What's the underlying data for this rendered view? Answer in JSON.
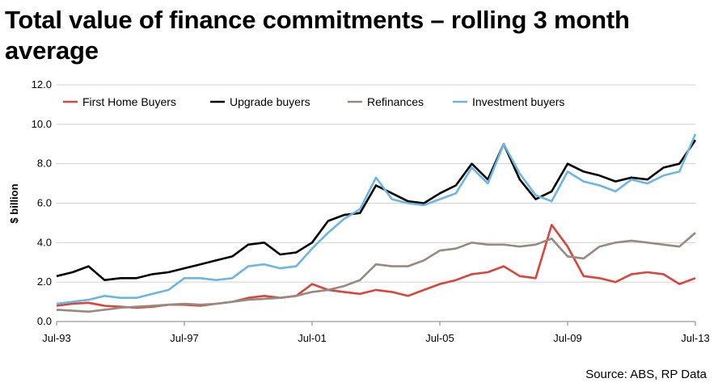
{
  "title": "Total value of finance commitments – rolling 3 month average",
  "source": "Source: ABS, RP Data",
  "chart_data": {
    "type": "line",
    "title": "Total value of finance commitments – rolling 3 month average",
    "xlabel": "",
    "ylabel": "$ billion",
    "x_ticks": [
      "Jul-93",
      "Jul-97",
      "Jul-01",
      "Jul-05",
      "Jul-09",
      "Jul-13"
    ],
    "y_ticks": [
      "0.0",
      "2.0",
      "4.0",
      "6.0",
      "8.0",
      "10.0",
      "12.0"
    ],
    "ylim": [
      0,
      12
    ],
    "xlim": [
      "1993-07",
      "2013-07"
    ],
    "grid": "horizontal",
    "legend_position": "top-left",
    "x": [
      "1993-07",
      "1994-01",
      "1994-07",
      "1995-01",
      "1995-07",
      "1996-01",
      "1996-07",
      "1997-01",
      "1997-07",
      "1998-01",
      "1998-07",
      "1999-01",
      "1999-07",
      "2000-01",
      "2000-07",
      "2001-01",
      "2001-07",
      "2002-01",
      "2002-07",
      "2003-01",
      "2003-07",
      "2004-01",
      "2004-07",
      "2005-01",
      "2005-07",
      "2006-01",
      "2006-07",
      "2007-01",
      "2007-07",
      "2008-01",
      "2008-07",
      "2009-01",
      "2009-07",
      "2010-01",
      "2010-07",
      "2011-01",
      "2011-07",
      "2012-01",
      "2012-07",
      "2013-01",
      "2013-07"
    ],
    "series": [
      {
        "name": "First Home Buyers",
        "color": "#d9453b",
        "values": [
          0.8,
          0.9,
          0.95,
          0.8,
          0.75,
          0.7,
          0.75,
          0.85,
          0.85,
          0.8,
          0.9,
          1.0,
          1.2,
          1.3,
          1.2,
          1.3,
          1.9,
          1.6,
          1.5,
          1.4,
          1.6,
          1.5,
          1.3,
          1.6,
          1.9,
          2.1,
          2.4,
          2.5,
          2.8,
          2.3,
          2.2,
          4.9,
          3.8,
          2.3,
          2.2,
          2.0,
          2.4,
          2.5,
          2.4,
          1.9,
          2.2
        ]
      },
      {
        "name": "Upgrade buyers",
        "color": "#000000",
        "values": [
          2.3,
          2.5,
          2.8,
          2.1,
          2.2,
          2.2,
          2.4,
          2.5,
          2.7,
          2.9,
          3.1,
          3.3,
          3.9,
          4.0,
          3.4,
          3.5,
          4.0,
          5.1,
          5.4,
          5.5,
          6.9,
          6.5,
          6.1,
          6.0,
          6.5,
          6.9,
          8.0,
          7.2,
          9.0,
          7.2,
          6.2,
          6.6,
          8.0,
          7.6,
          7.4,
          7.1,
          7.3,
          7.2,
          7.8,
          8.0,
          9.2
        ]
      },
      {
        "name": "Refinances",
        "color": "#978a80",
        "values": [
          0.6,
          0.55,
          0.5,
          0.6,
          0.7,
          0.75,
          0.8,
          0.85,
          0.9,
          0.85,
          0.9,
          1.0,
          1.1,
          1.15,
          1.2,
          1.3,
          1.5,
          1.6,
          1.8,
          2.1,
          2.9,
          2.8,
          2.8,
          3.1,
          3.6,
          3.7,
          4.0,
          3.9,
          3.9,
          3.8,
          3.9,
          4.2,
          3.3,
          3.2,
          3.8,
          4.0,
          4.1,
          4.0,
          3.9,
          3.8,
          4.5
        ]
      },
      {
        "name": "Investment buyers",
        "color": "#6bb6e2",
        "values": [
          0.9,
          1.0,
          1.1,
          1.3,
          1.2,
          1.2,
          1.4,
          1.6,
          2.2,
          2.2,
          2.1,
          2.2,
          2.8,
          2.9,
          2.7,
          2.8,
          3.7,
          4.5,
          5.2,
          5.7,
          7.3,
          6.2,
          6.0,
          5.9,
          6.2,
          6.5,
          7.8,
          7.0,
          9.0,
          7.5,
          6.4,
          6.1,
          7.6,
          7.1,
          6.9,
          6.6,
          7.2,
          7.0,
          7.4,
          7.6,
          9.5
        ]
      }
    ]
  }
}
